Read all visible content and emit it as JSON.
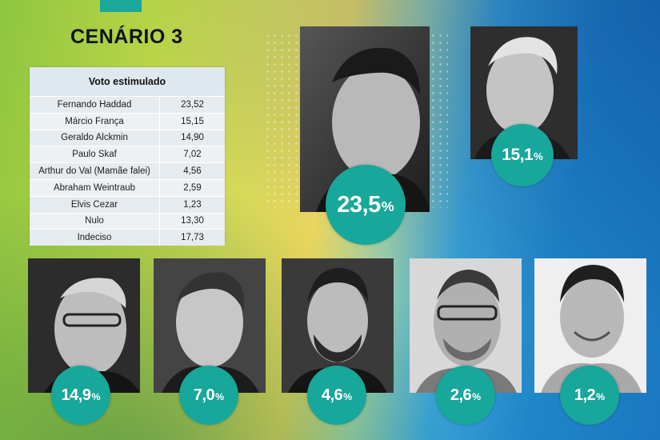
{
  "title": "CENÁRIO 3",
  "table": {
    "header": "Voto estimulado",
    "rows": [
      {
        "name": "Fernando Haddad",
        "value": "23,52"
      },
      {
        "name": "Márcio França",
        "value": "15,15"
      },
      {
        "name": "Geraldo Alckmin",
        "value": "14,90"
      },
      {
        "name": "Paulo Skaf",
        "value": "7,02"
      },
      {
        "name": "Arthur do Val (Mamãe falei)",
        "value": "4,56"
      },
      {
        "name": "Abraham Weintraub",
        "value": "2,59"
      },
      {
        "name": "Elvis Cezar",
        "value": "1,23"
      },
      {
        "name": "Nulo",
        "value": "13,30"
      },
      {
        "name": "Indeciso",
        "value": "17,73"
      }
    ]
  },
  "badges": {
    "haddad": {
      "num": "23,5",
      "pct": "%"
    },
    "franca": {
      "num": "15,1",
      "pct": "%"
    },
    "alckmin": {
      "num": "14,9",
      "pct": "%"
    },
    "skaf": {
      "num": "7,0",
      "pct": "%"
    },
    "arthur": {
      "num": "4,6",
      "pct": "%"
    },
    "weintraub": {
      "num": "2,6",
      "pct": "%"
    },
    "elvis": {
      "num": "1,2",
      "pct": "%"
    }
  },
  "colors": {
    "accent": "#17a79b",
    "table_bg": "#eef0f2"
  }
}
